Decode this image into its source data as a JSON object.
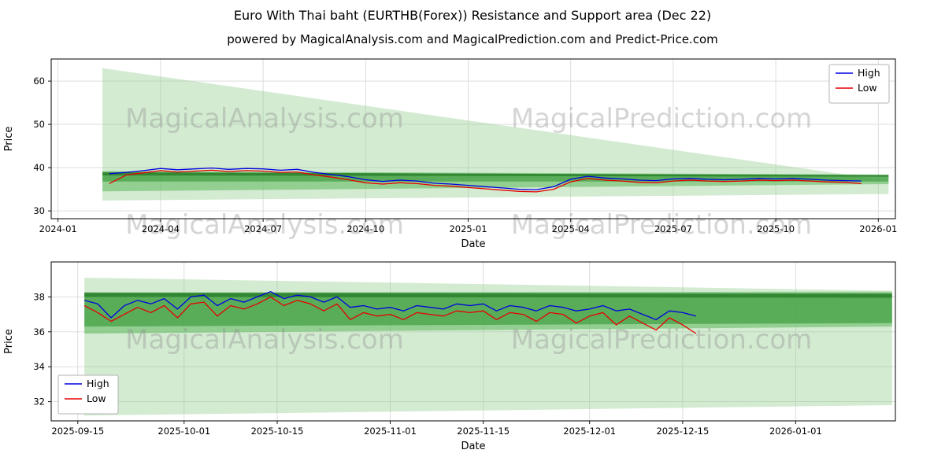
{
  "page": {
    "title": "Euro With Thai baht (EURTHB(Forex)) Resistance and Support area (Dec 22)",
    "subtitle": "powered by MagicalAnalysis.com and MagicalPrediction.com and Predict-Price.com",
    "watermark_color": "#8a8a8a"
  },
  "chart_data": [
    {
      "type": "line",
      "title": "",
      "xlabel": "Date",
      "ylabel": "Price",
      "x_domain": [
        -0.2,
        24.5
      ],
      "y_domain": [
        28.2,
        65.1
      ],
      "x_ticks": [
        {
          "v": 0,
          "label": "2024-01"
        },
        {
          "v": 3,
          "label": "2024-04"
        },
        {
          "v": 6,
          "label": "2024-07"
        },
        {
          "v": 9,
          "label": "2024-10"
        },
        {
          "v": 12,
          "label": "2025-01"
        },
        {
          "v": 15,
          "label": "2025-04"
        },
        {
          "v": 18,
          "label": "2025-07"
        },
        {
          "v": 21,
          "label": "2025-10"
        },
        {
          "v": 24,
          "label": "2026-01"
        }
      ],
      "y_ticks": [
        30,
        40,
        50,
        60
      ],
      "grid": true,
      "legend": {
        "position": "top-right",
        "items": [
          {
            "label": "High",
            "color": "#0000e0"
          },
          {
            "label": "Low",
            "color": "#e60000"
          }
        ]
      },
      "bands": [
        {
          "name": "support-area-wide",
          "color": "rgba(146,205,141,0.40)",
          "points": [
            [
              1.3,
              32.4
            ],
            [
              1.3,
              63.0
            ],
            [
              24.3,
              37.0
            ],
            [
              24.3,
              33.9
            ]
          ]
        },
        {
          "name": "support-area-mid",
          "color": "rgba(92,184,92,0.55)",
          "points": [
            [
              1.3,
              34.5
            ],
            [
              1.3,
              39.2
            ],
            [
              24.3,
              38.4
            ],
            [
              24.3,
              36.2
            ]
          ]
        },
        {
          "name": "resistance-area-core",
          "color": "rgba(52,150,52,0.60)",
          "points": [
            [
              1.3,
              36.8
            ],
            [
              1.3,
              39.0
            ],
            [
              24.3,
              38.2
            ],
            [
              24.3,
              36.8
            ]
          ]
        },
        {
          "name": "resistance-stripe",
          "color": "rgba(34,120,34,0.70)",
          "points": [
            [
              1.3,
              38.2
            ],
            [
              1.3,
              38.9
            ],
            [
              24.3,
              38.3
            ],
            [
              24.3,
              37.9
            ]
          ]
        }
      ],
      "x": [
        1.5,
        2,
        2.5,
        3,
        3.5,
        4,
        4.5,
        5,
        5.5,
        6,
        6.5,
        7,
        7.5,
        8,
        8.5,
        9,
        9.5,
        10,
        10.5,
        11,
        11.5,
        12,
        12.5,
        13,
        13.5,
        14,
        14.5,
        15,
        15.5,
        16,
        16.5,
        17,
        17.5,
        18,
        18.5,
        19,
        19.5,
        20,
        20.5,
        21,
        21.5,
        22,
        22.5,
        23,
        23.5
      ],
      "series": [
        {
          "name": "High",
          "color": "#0000e0",
          "values": [
            38.6,
            38.9,
            39.3,
            39.8,
            39.5,
            39.7,
            39.9,
            39.6,
            39.8,
            39.7,
            39.4,
            39.6,
            38.9,
            38.4,
            37.9,
            37.2,
            36.8,
            37.1,
            36.9,
            36.4,
            36.2,
            35.9,
            35.6,
            35.3,
            35.0,
            34.9,
            35.6,
            37.3,
            38.0,
            37.6,
            37.4,
            37.1,
            37.0,
            37.4,
            37.5,
            37.3,
            37.2,
            37.3,
            37.5,
            37.4,
            37.5,
            37.3,
            37.1,
            37.0,
            36.9
          ]
        },
        {
          "name": "Low",
          "color": "#e60000",
          "values": [
            36.3,
            38.3,
            38.8,
            39.3,
            39.0,
            39.2,
            39.4,
            39.1,
            39.3,
            39.2,
            38.9,
            39.0,
            38.3,
            37.8,
            37.2,
            36.5,
            36.2,
            36.5,
            36.3,
            35.9,
            35.7,
            35.4,
            35.1,
            34.8,
            34.5,
            34.4,
            35.0,
            36.7,
            37.5,
            37.1,
            36.9,
            36.6,
            36.5,
            36.9,
            37.1,
            36.9,
            36.8,
            36.9,
            37.1,
            37.0,
            37.1,
            36.9,
            36.7,
            36.6,
            36.3
          ]
        }
      ],
      "watermarks": [
        {
          "text": "MagicalAnalysis.com",
          "x": 0.28,
          "y": 0.38
        },
        {
          "text": "MagicalPrediction.com",
          "x": 0.7,
          "y": 0.38
        },
        {
          "text": "MagicalAnalysis.com",
          "x": 0.28,
          "y": 0.91
        },
        {
          "text": "MagicalPrediction.com",
          "x": 0.7,
          "y": 0.91
        }
      ]
    },
    {
      "type": "line",
      "title": "",
      "xlabel": "Date",
      "ylabel": "Price",
      "x_domain": [
        -4,
        123
      ],
      "y_domain": [
        30.9,
        40.0
      ],
      "x_ticks": [
        {
          "v": 0,
          "label": "2025-09-15"
        },
        {
          "v": 16,
          "label": "2025-10-01"
        },
        {
          "v": 30,
          "label": "2025-10-15"
        },
        {
          "v": 47,
          "label": "2025-11-01"
        },
        {
          "v": 61,
          "label": "2025-11-15"
        },
        {
          "v": 77,
          "label": "2025-12-01"
        },
        {
          "v": 91,
          "label": "2025-12-15"
        },
        {
          "v": 108,
          "label": "2026-01-01"
        }
      ],
      "y_ticks": [
        32,
        34,
        36,
        38
      ],
      "grid": true,
      "legend": {
        "position": "bottom-left",
        "items": [
          {
            "label": "High",
            "color": "#0000e0"
          },
          {
            "label": "Low",
            "color": "#e60000"
          }
        ]
      },
      "bands": [
        {
          "name": "support-area-wide",
          "color": "rgba(146,205,141,0.40)",
          "points": [
            [
              1,
              31.2
            ],
            [
              1,
              39.1
            ],
            [
              122.5,
              38.35
            ],
            [
              122.5,
              31.8
            ]
          ]
        },
        {
          "name": "support-area-mid",
          "color": "rgba(92,184,92,0.55)",
          "points": [
            [
              1,
              35.9
            ],
            [
              1,
              38.25
            ],
            [
              122.5,
              38.3
            ],
            [
              122.5,
              36.3
            ]
          ]
        },
        {
          "name": "resistance-area-core",
          "color": "rgba(52,150,52,0.60)",
          "points": [
            [
              1,
              36.3
            ],
            [
              1,
              38.2
            ],
            [
              122.5,
              38.15
            ],
            [
              122.5,
              36.5
            ]
          ]
        },
        {
          "name": "resistance-stripe",
          "color": "rgba(34,120,34,0.70)",
          "points": [
            [
              1,
              38.0
            ],
            [
              1,
              38.25
            ],
            [
              122.5,
              38.2
            ],
            [
              122.5,
              37.95
            ]
          ]
        }
      ],
      "x": [
        1,
        3,
        5,
        7,
        9,
        11,
        13,
        15,
        17,
        19,
        21,
        23,
        25,
        27,
        29,
        31,
        33,
        35,
        37,
        39,
        41,
        43,
        45,
        47,
        49,
        51,
        53,
        55,
        57,
        59,
        61,
        63,
        65,
        67,
        69,
        71,
        73,
        75,
        77,
        79,
        81,
        83,
        85,
        87,
        89,
        91,
        93
      ],
      "series": [
        {
          "name": "High",
          "color": "#0000e0",
          "values": [
            37.8,
            37.6,
            36.8,
            37.5,
            37.8,
            37.6,
            37.9,
            37.3,
            38.0,
            38.1,
            37.5,
            37.9,
            37.7,
            38.0,
            38.3,
            37.9,
            38.1,
            38.0,
            37.7,
            38.0,
            37.4,
            37.5,
            37.3,
            37.4,
            37.2,
            37.5,
            37.4,
            37.3,
            37.6,
            37.5,
            37.6,
            37.2,
            37.5,
            37.4,
            37.2,
            37.5,
            37.4,
            37.2,
            37.3,
            37.5,
            37.2,
            37.3,
            37.0,
            36.7,
            37.2,
            37.1,
            36.9
          ]
        },
        {
          "name": "Low",
          "color": "#e60000",
          "values": [
            37.5,
            37.1,
            36.6,
            37.0,
            37.4,
            37.1,
            37.5,
            36.8,
            37.6,
            37.7,
            36.9,
            37.5,
            37.3,
            37.6,
            38.0,
            37.5,
            37.8,
            37.6,
            37.2,
            37.6,
            36.7,
            37.1,
            36.9,
            37.0,
            36.7,
            37.1,
            37.0,
            36.9,
            37.2,
            37.1,
            37.2,
            36.7,
            37.1,
            37.0,
            36.6,
            37.1,
            37.0,
            36.5,
            36.9,
            37.1,
            36.4,
            36.9,
            36.5,
            36.1,
            36.8,
            36.4,
            35.9
          ]
        }
      ],
      "watermarks": [
        {
          "text": "MagicalAnalysis.com",
          "x": 0.28,
          "y": 0.44
        },
        {
          "text": "MagicalPrediction.com",
          "x": 0.7,
          "y": 0.44
        }
      ]
    }
  ]
}
